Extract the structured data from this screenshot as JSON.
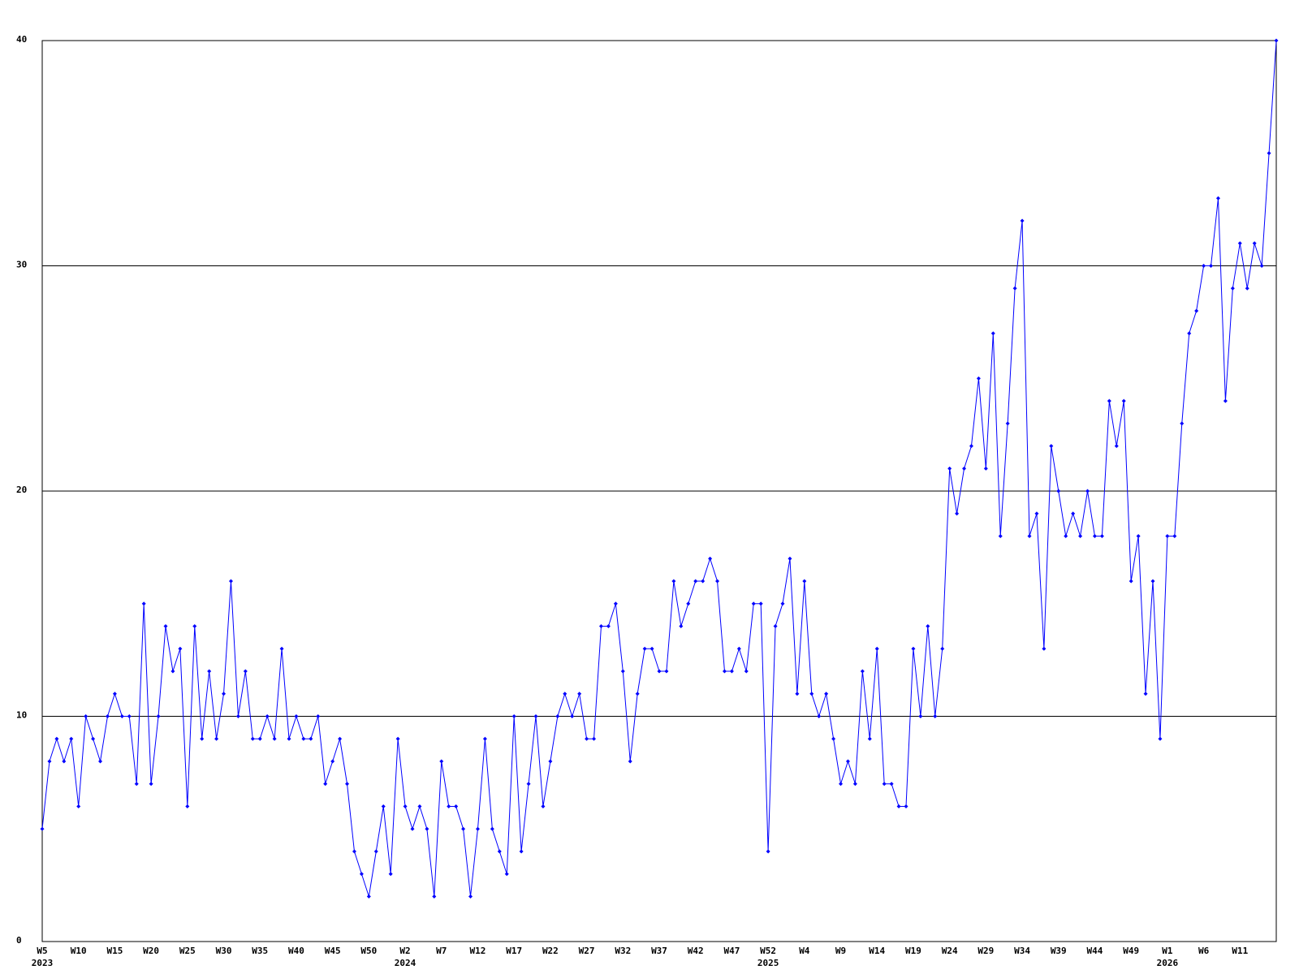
{
  "chart_data": {
    "type": "line",
    "categories": [
      "W5",
      null,
      null,
      null,
      null,
      "W10",
      null,
      null,
      null,
      null,
      "W15",
      null,
      null,
      null,
      null,
      "W20",
      null,
      null,
      null,
      null,
      "W25",
      null,
      null,
      null,
      null,
      "W30",
      null,
      null,
      null,
      null,
      "W35",
      null,
      null,
      null,
      null,
      "W40",
      null,
      null,
      null,
      null,
      "W45",
      null,
      null,
      null,
      null,
      "W50",
      null,
      null,
      null,
      null,
      "W2",
      null,
      null,
      null,
      null,
      "W7",
      null,
      null,
      null,
      null,
      "W12",
      null,
      null,
      null,
      null,
      "W17",
      null,
      null,
      null,
      null,
      "W22",
      null,
      null,
      null,
      null,
      "W27",
      null,
      null,
      null,
      null,
      "W32",
      null,
      null,
      null,
      null,
      "W37",
      null,
      null,
      null,
      null,
      "W42",
      null,
      null,
      null,
      null,
      "W47",
      null,
      null,
      null,
      null,
      "W52",
      null,
      null,
      null,
      null,
      "W4",
      null,
      null,
      null,
      null,
      "W9",
      null,
      null,
      null,
      null,
      "W14",
      null,
      null,
      null,
      null,
      "W19",
      null,
      null,
      null,
      null,
      "W24",
      null,
      null,
      null,
      null,
      "W29",
      null,
      null,
      null,
      null,
      "W34",
      null,
      null,
      null,
      null,
      "W39",
      null,
      null,
      null,
      null,
      "W44",
      null,
      null,
      null,
      null,
      "W49",
      null,
      null,
      null,
      null,
      "W1",
      null,
      null,
      null,
      null,
      "W6",
      null,
      null,
      null,
      null,
      "W11",
      null,
      null,
      null,
      null,
      null
    ],
    "year_labels": [
      "2023",
      null,
      null,
      null,
      null,
      null,
      null,
      null,
      null,
      null,
      null,
      null,
      null,
      null,
      null,
      null,
      null,
      null,
      null,
      null,
      null,
      null,
      null,
      null,
      null,
      null,
      null,
      null,
      null,
      null,
      null,
      null,
      null,
      null,
      null,
      null,
      null,
      null,
      null,
      null,
      null,
      null,
      null,
      null,
      null,
      null,
      null,
      null,
      null,
      null,
      "2024",
      null,
      null,
      null,
      null,
      null,
      null,
      null,
      null,
      null,
      null,
      null,
      null,
      null,
      null,
      null,
      null,
      null,
      null,
      null,
      null,
      null,
      null,
      null,
      null,
      null,
      null,
      null,
      null,
      null,
      null,
      null,
      null,
      null,
      null,
      null,
      null,
      null,
      null,
      null,
      null,
      null,
      null,
      null,
      null,
      null,
      null,
      null,
      null,
      null,
      "2025",
      null,
      null,
      null,
      null,
      null,
      null,
      null,
      null,
      null,
      null,
      null,
      null,
      null,
      null,
      null,
      null,
      null,
      null,
      null,
      null,
      null,
      null,
      null,
      null,
      null,
      null,
      null,
      null,
      null,
      null,
      null,
      null,
      null,
      null,
      null,
      null,
      null,
      null,
      null,
      null,
      null,
      null,
      null,
      null,
      null,
      null,
      null,
      null,
      null,
      null,
      null,
      null,
      null,
      null,
      "2026",
      null,
      null,
      null,
      null,
      null,
      null,
      null,
      null,
      null,
      null,
      null,
      null,
      null,
      null,
      null
    ],
    "values": [
      5,
      8,
      9,
      8,
      9,
      6,
      10,
      9,
      8,
      10,
      11,
      10,
      10,
      7,
      15,
      7,
      10,
      14,
      12,
      13,
      6,
      14,
      9,
      12,
      9,
      11,
      16,
      10,
      12,
      9,
      9,
      10,
      9,
      13,
      9,
      10,
      9,
      9,
      10,
      7,
      8,
      9,
      7,
      4,
      3,
      2,
      4,
      6,
      3,
      9,
      6,
      5,
      6,
      5,
      2,
      8,
      6,
      6,
      5,
      2,
      5,
      9,
      5,
      4,
      3,
      10,
      4,
      7,
      10,
      6,
      8,
      10,
      11,
      10,
      11,
      9,
      9,
      14,
      14,
      15,
      12,
      8,
      11,
      13,
      13,
      12,
      12,
      16,
      14,
      15,
      16,
      16,
      17,
      16,
      12,
      12,
      13,
      12,
      15,
      15,
      4,
      14,
      15,
      17,
      11,
      16,
      11,
      10,
      11,
      9,
      7,
      8,
      7,
      12,
      9,
      13,
      7,
      7,
      6,
      6,
      13,
      10,
      14,
      10,
      13,
      21,
      19,
      21,
      22,
      25,
      21,
      27,
      18,
      23,
      29,
      32,
      18,
      19,
      13,
      22,
      20,
      18,
      19,
      18,
      20,
      18,
      18,
      24,
      22,
      24,
      16,
      18,
      11,
      16,
      9,
      18,
      18,
      23,
      27,
      28,
      30,
      30,
      33,
      24,
      29,
      31,
      29,
      31,
      30,
      35,
      40
    ],
    "color": "#0000ff",
    "ylim": [
      0,
      40
    ],
    "yticks": [
      0,
      10,
      20,
      30,
      40
    ],
    "grid": true
  }
}
